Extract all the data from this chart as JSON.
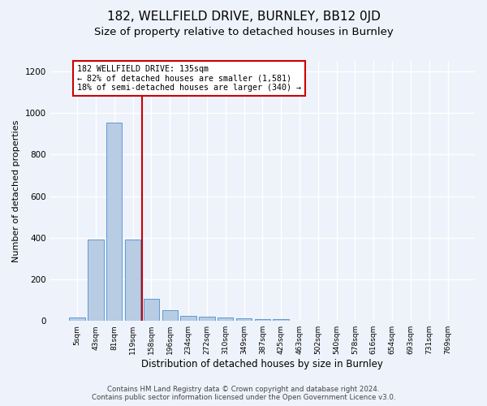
{
  "title1": "182, WELLFIELD DRIVE, BURNLEY, BB12 0JD",
  "title2": "Size of property relative to detached houses in Burnley",
  "xlabel": "Distribution of detached houses by size in Burnley",
  "ylabel": "Number of detached properties",
  "bar_labels": [
    "5sqm",
    "43sqm",
    "81sqm",
    "119sqm",
    "158sqm",
    "196sqm",
    "234sqm",
    "272sqm",
    "310sqm",
    "349sqm",
    "387sqm",
    "425sqm",
    "463sqm",
    "502sqm",
    "540sqm",
    "578sqm",
    "616sqm",
    "654sqm",
    "693sqm",
    "731sqm",
    "769sqm"
  ],
  "bar_values": [
    15,
    390,
    955,
    390,
    105,
    50,
    25,
    20,
    15,
    12,
    10,
    8,
    0,
    0,
    0,
    0,
    0,
    0,
    0,
    0,
    0
  ],
  "bar_color": "#b8cce4",
  "bar_edge_color": "#5b9bd5",
  "ylim": [
    0,
    1250
  ],
  "yticks": [
    0,
    200,
    400,
    600,
    800,
    1000,
    1200
  ],
  "property_line_x": 3.5,
  "property_line_color": "#cc0000",
  "annotation_text": "182 WELLFIELD DRIVE: 135sqm\n← 82% of detached houses are smaller (1,581)\n18% of semi-detached houses are larger (340) →",
  "annotation_box_color": "#ffffff",
  "annotation_box_edge": "#cc0000",
  "footer1": "Contains HM Land Registry data © Crown copyright and database right 2024.",
  "footer2": "Contains public sector information licensed under the Open Government Licence v3.0.",
  "bg_color": "#eef2fa",
  "plot_bg_color": "#eef2fa",
  "grid_color": "#ffffff",
  "title1_fontsize": 11,
  "title2_fontsize": 9.5
}
